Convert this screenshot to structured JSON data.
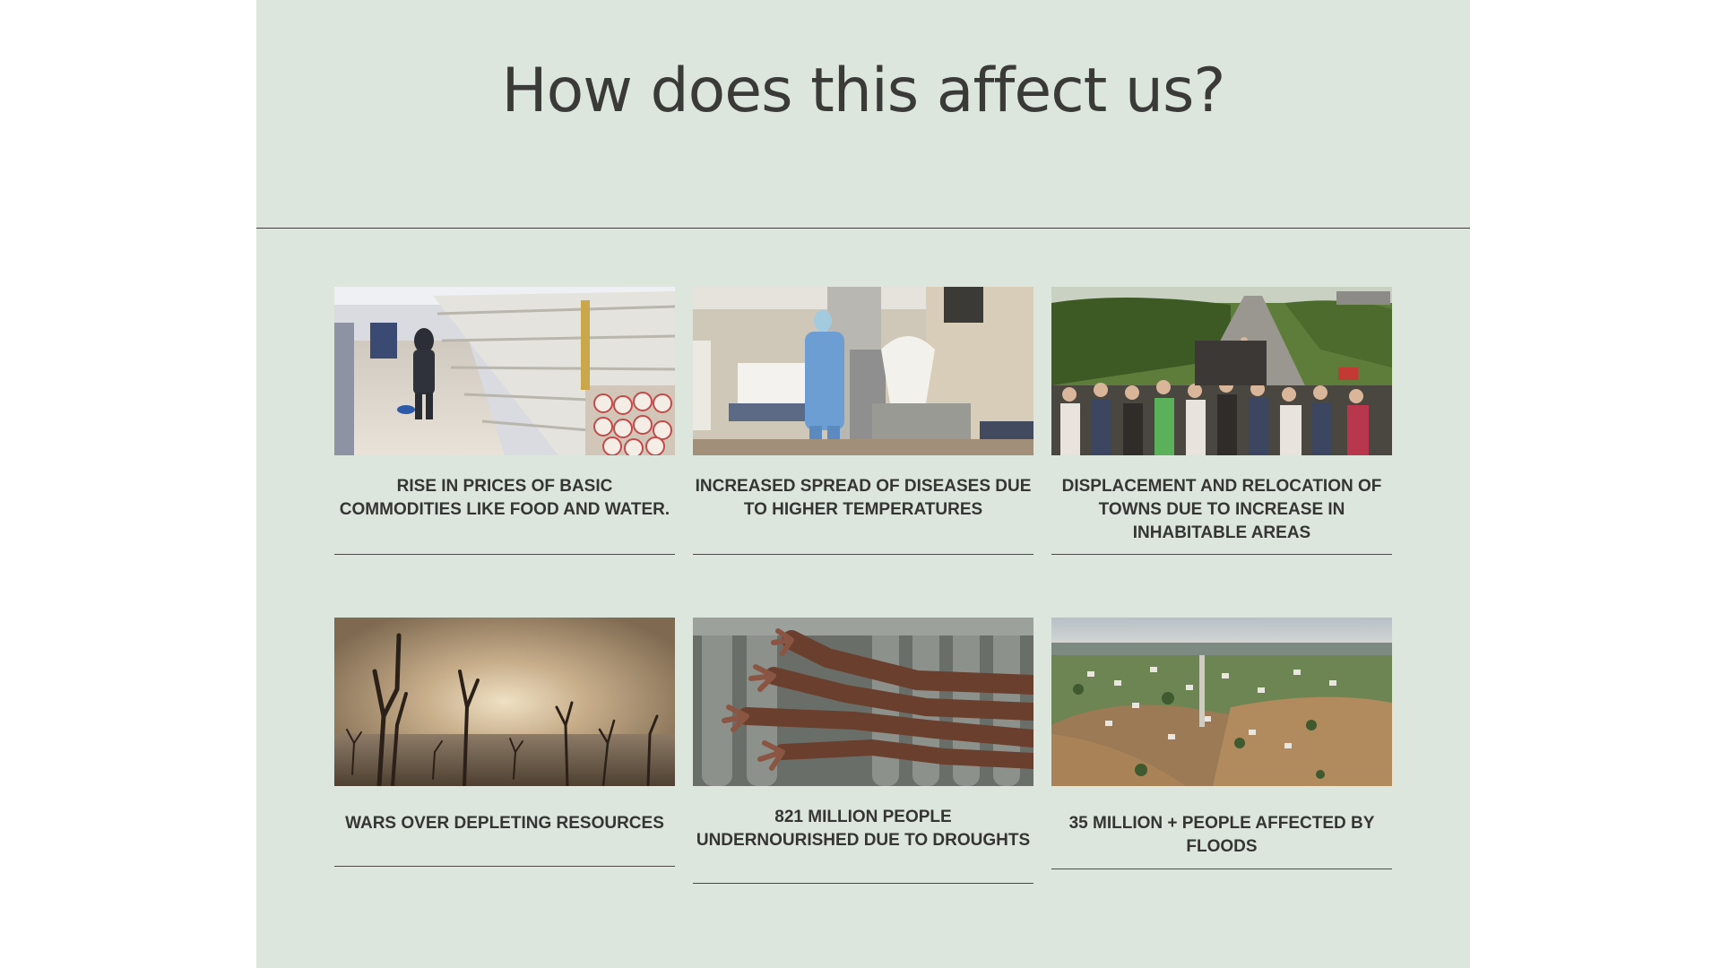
{
  "slide": {
    "title": "How does this affect us?",
    "background": "#dce6dd",
    "cards": [
      {
        "caption": "RISE IN PRICES OF BASIC COMMODITIES LIKE FOOD AND WATER.",
        "image": "empty-supermarket-shelves-photo"
      },
      {
        "caption": "INCREASED SPREAD OF DISEASES DUE TO HIGHER TEMPERATURES",
        "image": "hospital-corridor-photo"
      },
      {
        "caption": "DISPLACEMENT AND RELOCATION OF TOWNS DUE TO INCREASE IN INHABITABLE AREAS",
        "image": "migrant-crowd-road-photo"
      },
      {
        "caption": "WARS OVER DEPLETING RESOURCES",
        "image": "dead-trees-drought-photo"
      },
      {
        "caption": "821 MILLION PEOPLE UNDERNOURISHED DUE TO DROUGHTS",
        "image": "reaching-hands-photo"
      },
      {
        "caption": "35 MILLION + PEOPLE AFFECTED BY FLOODS",
        "image": "flooded-town-aerial-photo"
      }
    ]
  }
}
